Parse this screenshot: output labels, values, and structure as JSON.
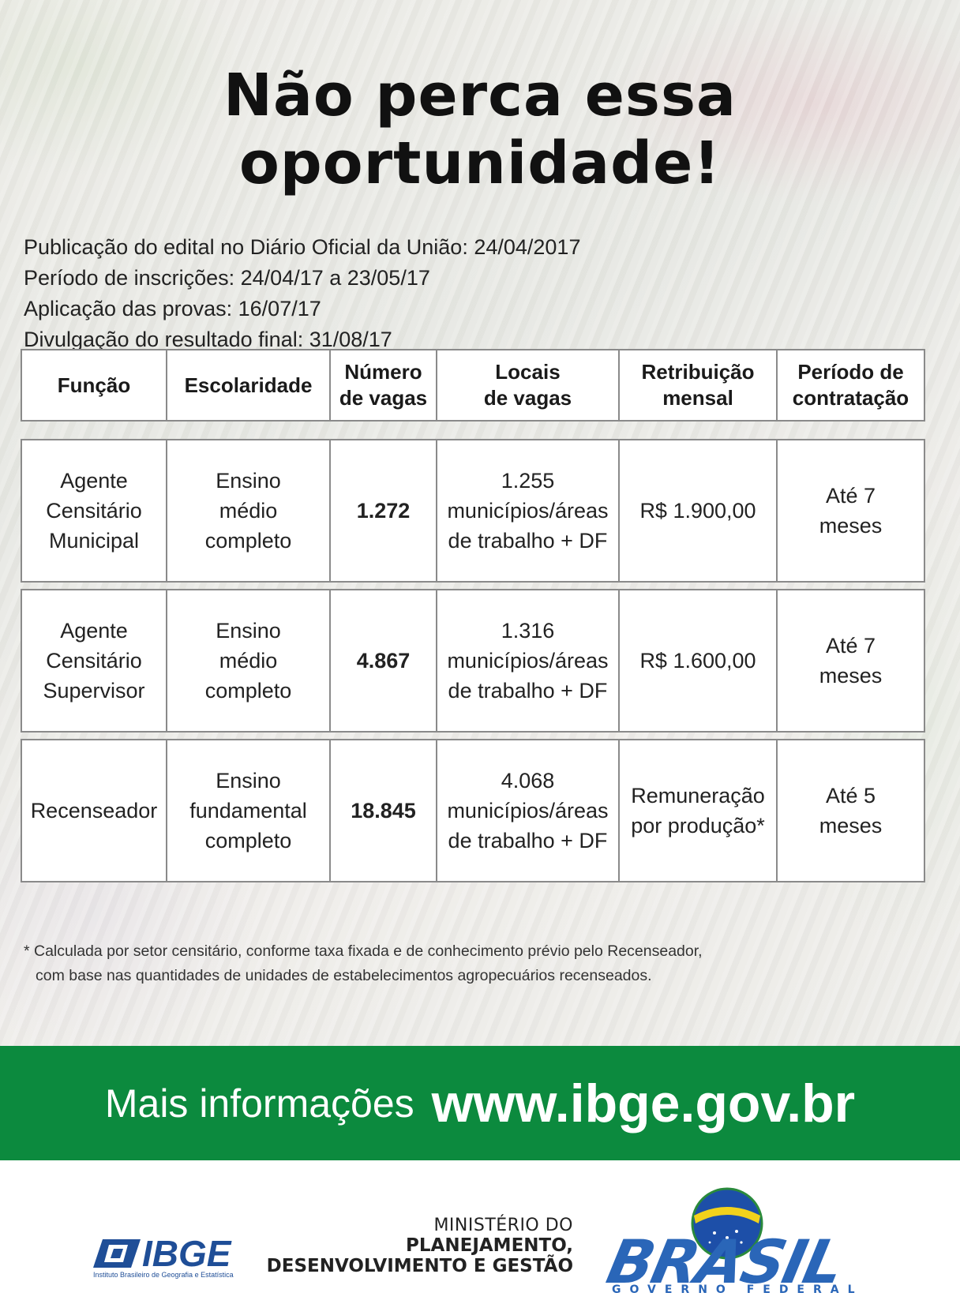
{
  "headline": "Não perca essa oportunidade!",
  "info_lines": [
    "Publicação do edital no Diário Oficial da União: 24/04/2017",
    "Período de inscrições: 24/04/17 a 23/05/17",
    "Aplicação das provas: 16/07/17",
    "Divulgação do resultado final: 31/08/17"
  ],
  "table": {
    "headers": [
      [
        "Função"
      ],
      [
        "Escolaridade"
      ],
      [
        "Número",
        "de vagas"
      ],
      [
        "Locais",
        "de vagas"
      ],
      [
        "Retribuição",
        "mensal"
      ],
      [
        "Período de",
        "contratação"
      ]
    ],
    "rows": [
      {
        "funcao": [
          "Agente",
          "Censitário",
          "Municipal"
        ],
        "escolaridade": [
          "Ensino",
          "médio",
          "completo"
        ],
        "vagas": "1.272",
        "locais": [
          "1.255",
          "municípios/áreas",
          "de trabalho + DF"
        ],
        "retribuicao": [
          "R$ 1.900,00"
        ],
        "periodo": [
          "Até 7",
          "meses"
        ]
      },
      {
        "funcao": [
          "Agente",
          "Censitário",
          "Supervisor"
        ],
        "escolaridade": [
          "Ensino",
          "médio",
          "completo"
        ],
        "vagas": "4.867",
        "locais": [
          "1.316",
          "municípios/áreas",
          "de trabalho + DF"
        ],
        "retribuicao": [
          "R$ 1.600,00"
        ],
        "periodo": [
          "Até 7",
          "meses"
        ]
      },
      {
        "funcao": [
          "Recenseador"
        ],
        "escolaridade": [
          "Ensino",
          "fundamental",
          "completo"
        ],
        "vagas": "18.845",
        "locais": [
          "4.068",
          "municípios/áreas",
          "de trabalho + DF"
        ],
        "retribuicao": [
          "Remuneração",
          "por produção*"
        ],
        "periodo": [
          "Até 5",
          "meses"
        ]
      }
    ]
  },
  "footnote": [
    "* Calculada por setor censitário, conforme taxa fixada e de conhecimento prévio pelo Recenseador,",
    "com base nas quantidades de unidades de estabelecimentos agropecuários recenseados."
  ],
  "banner": {
    "label": "Mais informações",
    "url": "www.ibge.gov.br",
    "color": "#0c8a3e"
  },
  "logos": {
    "ibge": {
      "name": "IBGE",
      "subtitle": "Instituto Brasileiro de Geografia e Estatística",
      "icon": "ibge-mark-icon"
    },
    "ministerio": {
      "line1": "MINISTÉRIO DO",
      "line2": "PLANEJAMENTO,",
      "line3": "DESENVOLVIMENTO E GESTÃO"
    },
    "brasil": {
      "word": "BRASIL",
      "tagline": "GOVERNO FEDERAL",
      "icon": "brasil-globe-icon"
    }
  }
}
